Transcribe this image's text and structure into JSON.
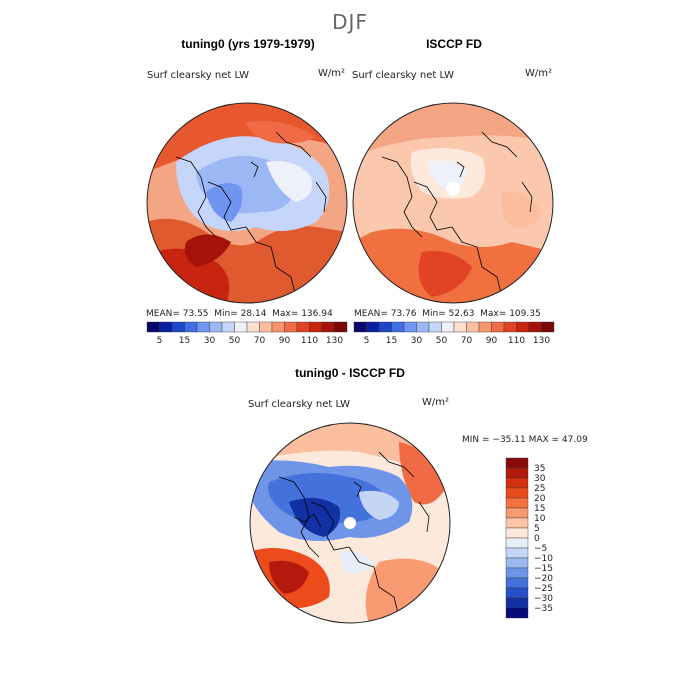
{
  "figure": {
    "season": "DJF"
  },
  "panels": [
    {
      "title": "tuning0 (yrs 1979-1979)",
      "variable": "Surf clearsky net LW",
      "units": "W/m²",
      "mean_label": "MEAN=",
      "mean": "73.55",
      "min_label": "Min=",
      "min": "28.14",
      "max_label": "Max=",
      "max": "136.94"
    },
    {
      "title": "ISCCP FD",
      "variable": "Surf clearsky net LW",
      "units": "W/m²",
      "mean_label": "MEAN=",
      "mean": "73.76",
      "min_label": "Min=",
      "min": "52.63",
      "max_label": "Max=",
      "max": "109.35"
    },
    {
      "title": "tuning0 - ISCCP FD",
      "variable": "Surf clearsky net LW",
      "units": "W/m²",
      "minmax_text": "MIN = −35.11  MAX =  47.09"
    }
  ],
  "colorbar_horizontal": {
    "tick_labels": [
      "5",
      "15",
      "30",
      "50",
      "70",
      "90",
      "110",
      "130"
    ],
    "colors": [
      "#08086b",
      "#0a1fa0",
      "#1f45cc",
      "#3f6fe6",
      "#6f95f0",
      "#9bb8f5",
      "#c5d6fa",
      "#eef0fa",
      "#fde0cf",
      "#fbbfa0",
      "#f7956f",
      "#f06b45",
      "#e04424",
      "#c8240f",
      "#a5120a",
      "#7a0606"
    ]
  },
  "colorbar_vertical": {
    "labels": [
      "35",
      "30",
      "25",
      "20",
      "15",
      "10",
      "5",
      "0",
      "−5",
      "−10",
      "−15",
      "−20",
      "−25",
      "−30",
      "−35"
    ],
    "colors": [
      "#8b0a0a",
      "#b5180d",
      "#d7300f",
      "#ee4b1c",
      "#f77040",
      "#fa9a72",
      "#fdc5a7",
      "#fde8dc",
      "#e8eef9",
      "#c5d6f5",
      "#9bb8f0",
      "#6f95e8",
      "#4472dc",
      "#2550c8",
      "#1330a5",
      "#06097a"
    ]
  },
  "map_colors": {
    "land_outline": "#000000",
    "disk_border": "#222222"
  }
}
